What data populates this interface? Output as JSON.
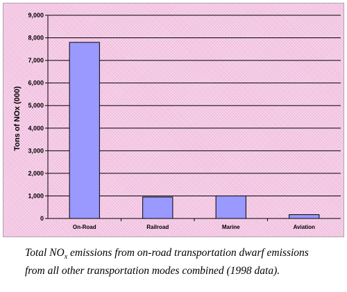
{
  "chart_data": {
    "type": "bar",
    "categories": [
      "On-Road",
      "Railroad",
      "Marine",
      "Aviation"
    ],
    "values": [
      7800,
      950,
      1000,
      170
    ],
    "ylabel": "Tons of NOx (000)",
    "xlabel": "",
    "ylim": [
      0,
      9000
    ],
    "yticks": [
      "0",
      "1,000",
      "2,000",
      "3,000",
      "4,000",
      "5,000",
      "6,000",
      "7,000",
      "8,000",
      "9,000"
    ],
    "grid": true,
    "colors": {
      "bar": "#9999ff",
      "bar_border": "#000000",
      "gridline": "#000000",
      "background": "#f4c8e4"
    }
  },
  "caption": {
    "before_sub": "Total NO",
    "sub": "x",
    "after_sub": " emissions from on-road transportation dwarf emissions from all other transportation modes combined (1998 data)."
  }
}
